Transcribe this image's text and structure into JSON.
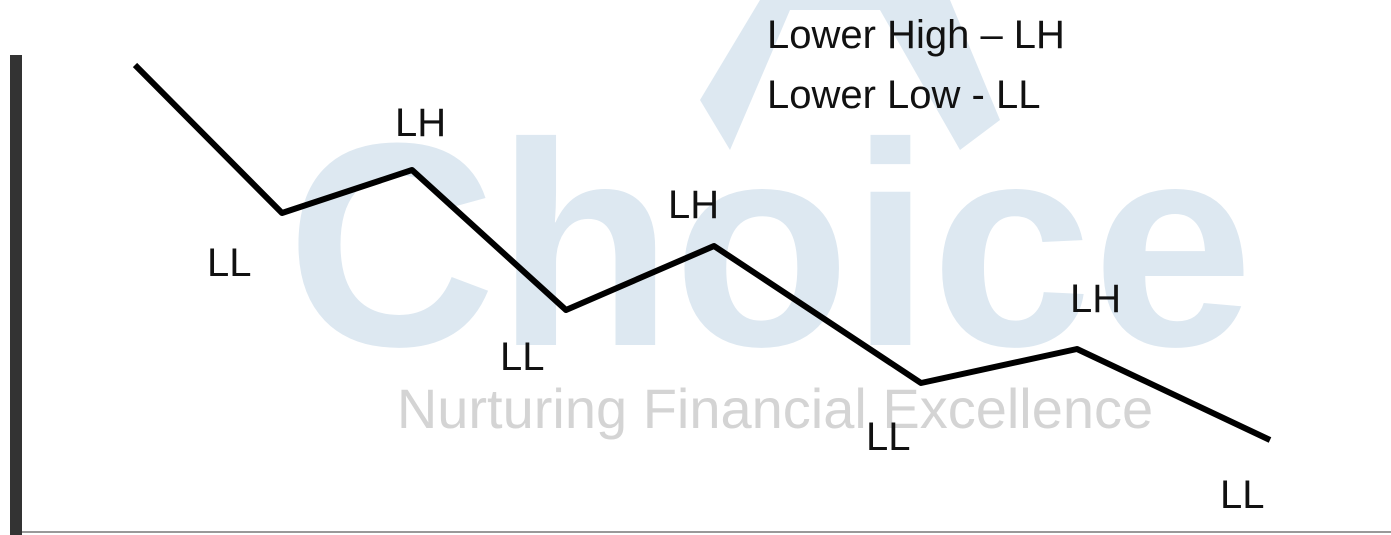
{
  "watermark": {
    "brand": "Choice",
    "tagline": "Nurturing Financial Excellence"
  },
  "legend": [
    "Lower High – LH",
    "Lower Low - LL"
  ],
  "labels": [
    "LL",
    "LH",
    "LL",
    "LH",
    "LL",
    "LH",
    "LL"
  ]
}
